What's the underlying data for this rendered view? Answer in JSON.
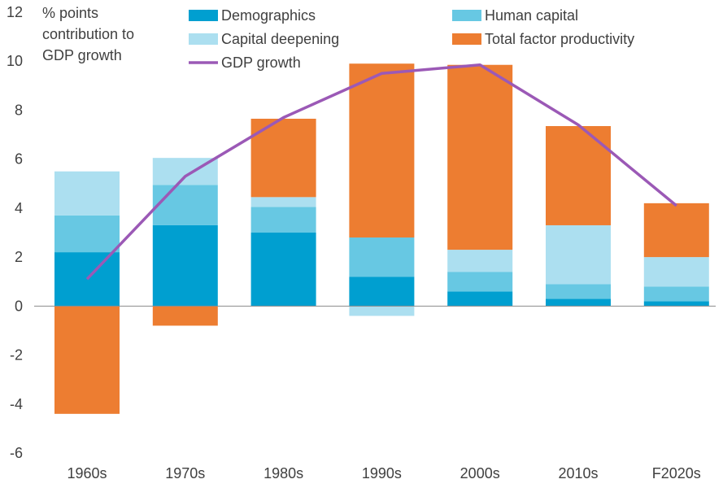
{
  "chart_data": {
    "type": "bar",
    "stacked": true,
    "ylabel": [
      "% points",
      "contribution to",
      "GDP growth"
    ],
    "ylim": [
      -6,
      12
    ],
    "yticks": [
      -6,
      -4,
      -2,
      0,
      2,
      4,
      6,
      8,
      10,
      12
    ],
    "categories": [
      "1960s",
      "1970s",
      "1980s",
      "1990s",
      "2000s",
      "2010s",
      "F2020s"
    ],
    "series": [
      {
        "name": "Demographics",
        "color": "#009fd0",
        "values": [
          2.2,
          3.3,
          3.0,
          1.2,
          0.6,
          0.3,
          0.2
        ]
      },
      {
        "name": "Human capital",
        "color": "#67c8e3",
        "values": [
          1.5,
          1.65,
          1.05,
          1.6,
          0.8,
          0.6,
          0.6
        ]
      },
      {
        "name": "Capital deepening",
        "color": "#acdff0",
        "values": [
          1.8,
          1.1,
          0.4,
          -0.4,
          0.9,
          2.4,
          1.2
        ]
      },
      {
        "name": "Total factor productivity",
        "color": "#ed7d31",
        "values": [
          -4.4,
          -0.8,
          3.2,
          7.1,
          7.55,
          4.05,
          2.2
        ]
      }
    ],
    "line": {
      "name": "GDP growth",
      "color": "#9b59b6",
      "values": [
        1.1,
        5.3,
        7.7,
        9.5,
        9.85,
        7.4,
        4.1
      ]
    },
    "legend": {
      "position": "top"
    },
    "grid": false
  }
}
